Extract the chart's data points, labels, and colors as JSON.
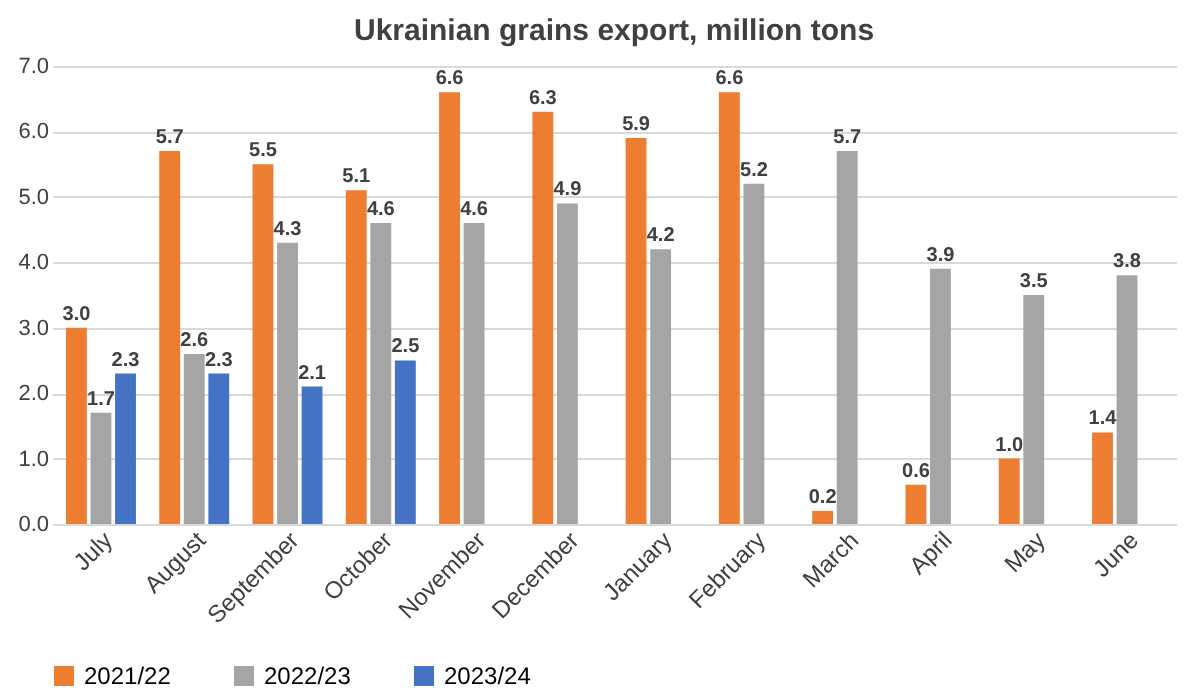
{
  "chart_data": {
    "type": "bar",
    "title": "Ukrainian grains export, million tons",
    "categories": [
      "July",
      "August",
      "September",
      "October",
      "November",
      "December",
      "January",
      "February",
      "March",
      "April",
      "May",
      "June"
    ],
    "series": [
      {
        "name": "2021/22",
        "color": "#ed7d31",
        "values": [
          3.0,
          5.7,
          5.5,
          5.1,
          6.6,
          6.3,
          5.9,
          6.6,
          0.2,
          0.6,
          1.0,
          1.4
        ],
        "value_labels": [
          "3.0",
          "5.7",
          "5.5",
          "5.1",
          "6.6",
          "6.3",
          "5.9",
          "6.6",
          "0.2",
          "0.6",
          "1.0",
          "1.4"
        ]
      },
      {
        "name": "2022/23",
        "color": "#a5a5a5",
        "values": [
          1.7,
          2.6,
          4.3,
          4.6,
          4.6,
          4.9,
          4.2,
          5.2,
          5.7,
          3.9,
          3.5,
          3.8
        ],
        "value_labels": [
          "1.7",
          "2.6",
          "4.3",
          "4.6",
          "4.6",
          "4.9",
          "4.2",
          "5.2",
          "5.7",
          "3.9",
          "3.5",
          "3.8"
        ]
      },
      {
        "name": "2023/24",
        "color": "#4472c4",
        "values": [
          2.3,
          2.3,
          2.1,
          2.5,
          null,
          null,
          null,
          null,
          null,
          null,
          null,
          null
        ],
        "value_labels": [
          "2.3",
          "2.3",
          "2.1",
          "2.5",
          null,
          null,
          null,
          null,
          null,
          null,
          null,
          null
        ]
      }
    ],
    "ylim": [
      0,
      7
    ],
    "yticks": [
      {
        "value": 0,
        "label": "0.0"
      },
      {
        "value": 1,
        "label": "1.0"
      },
      {
        "value": 2,
        "label": "2.0"
      },
      {
        "value": 3,
        "label": "3.0"
      },
      {
        "value": 4,
        "label": "4.0"
      },
      {
        "value": 5,
        "label": "5.0"
      },
      {
        "value": 6,
        "label": "6.0"
      },
      {
        "value": 7,
        "label": "7.0"
      }
    ],
    "grid": "y",
    "legend": "bottom"
  }
}
